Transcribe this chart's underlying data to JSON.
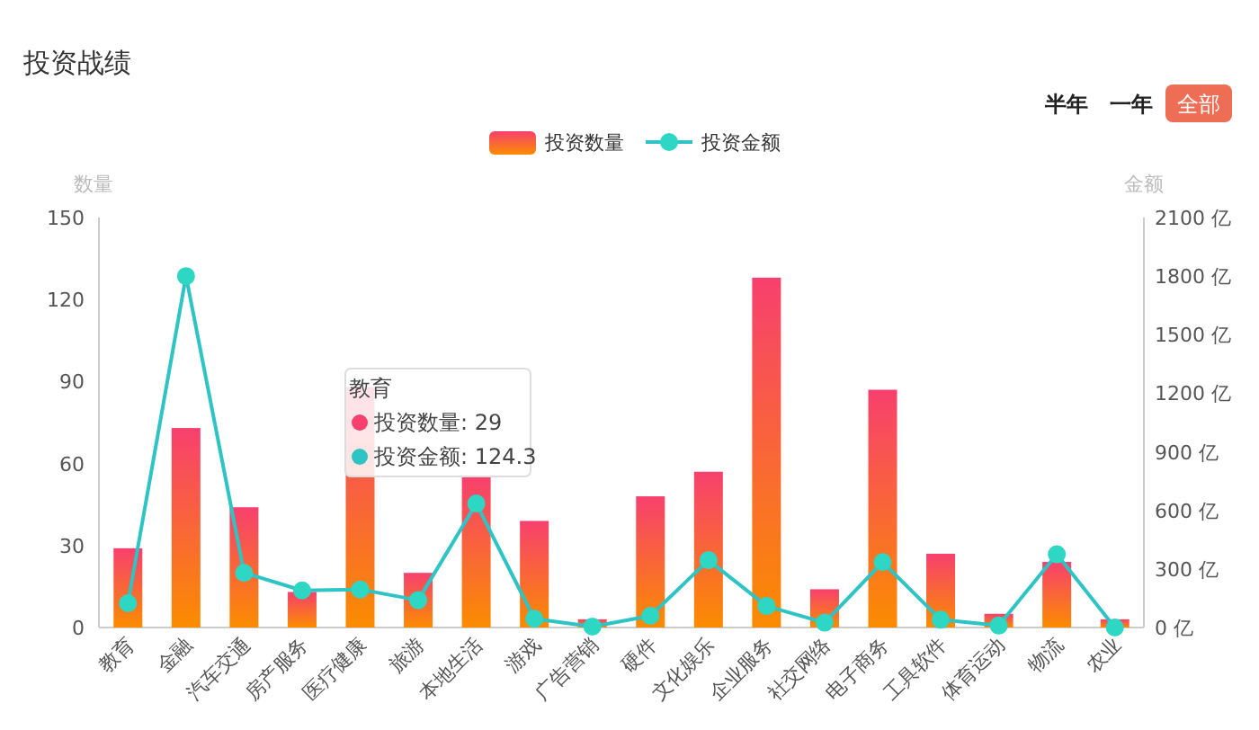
{
  "chart_data": {
    "type": "bar",
    "title": "投资战绩",
    "categories": [
      "教育",
      "金融",
      "汽车交通",
      "房产服务",
      "医疗健康",
      "旅游",
      "本地生活",
      "游戏",
      "广告营销",
      "硬件",
      "文化娱乐",
      "企业服务",
      "社交网络",
      "电子商务",
      "工具软件",
      "体育运动",
      "物流",
      "农业"
    ],
    "series": [
      {
        "name": "投资数量",
        "color": "#f7406e",
        "values": [
          29,
          73,
          44,
          13,
          88,
          20,
          55,
          39,
          3,
          48,
          57,
          128,
          14,
          87,
          27,
          5,
          24,
          3
        ]
      },
      {
        "name": "投资金额",
        "type": "line",
        "axis": "y2",
        "color": "#2ec4c6",
        "values": [
          124.3,
          1800,
          280,
          190,
          195,
          140,
          635,
          45,
          5,
          60,
          345,
          110,
          25,
          335,
          40,
          10,
          375,
          0
        ]
      }
    ],
    "ylabel": "数量",
    "y2label": "金额",
    "ylim": [
      0,
      150
    ],
    "yticks": [
      0,
      30,
      60,
      90,
      120,
      150
    ],
    "y2lim": [
      0,
      2100
    ],
    "y2ticks": [
      {
        "value": 0,
        "label": "0 亿"
      },
      {
        "value": 300,
        "label": "300 亿"
      },
      {
        "value": 600,
        "label": "600 亿"
      },
      {
        "value": 900,
        "label": "900 亿"
      },
      {
        "value": 1200,
        "label": "1200 亿"
      },
      {
        "value": 1500,
        "label": "1500 亿"
      },
      {
        "value": 1800,
        "label": "1800 亿"
      },
      {
        "value": 2100,
        "label": "2100 亿"
      }
    ],
    "legend": "top",
    "marker": "circle",
    "grid": false,
    "annotations": [
      "半年",
      "一年",
      "全部",
      "教育",
      "投资数量: 29",
      "投资金额: 124.3"
    ]
  }
}
